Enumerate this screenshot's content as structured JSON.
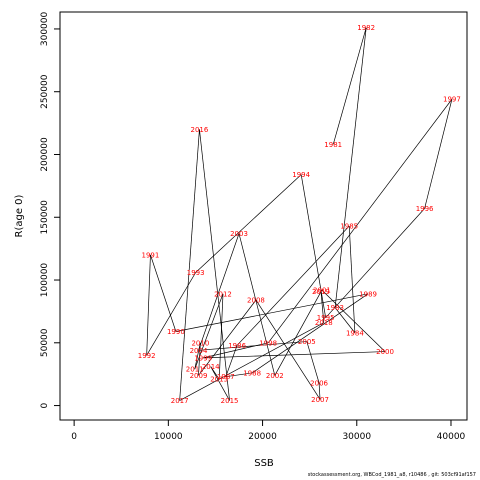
{
  "chart_data": {
    "type": "line",
    "xlabel": "SSB",
    "ylabel": "R(age 0)",
    "xlim": [
      -1500,
      41700
    ],
    "ylim": [
      -11500,
      313500
    ],
    "xticks": [
      0,
      10000,
      20000,
      30000,
      40000
    ],
    "yticks": [
      0,
      50000,
      100000,
      150000,
      200000,
      250000,
      300000
    ],
    "line_color": "#000000",
    "label_color": "#ff0000",
    "points": [
      {
        "year": "1981",
        "x": 27500,
        "y": 208000
      },
      {
        "year": "1982",
        "x": 31000,
        "y": 301000
      },
      {
        "year": "1983",
        "x": 27700,
        "y": 78000
      },
      {
        "year": "1984",
        "x": 29800,
        "y": 58000
      },
      {
        "year": "1985",
        "x": 29200,
        "y": 143000
      },
      {
        "year": "1986",
        "x": 17300,
        "y": 48000
      },
      {
        "year": "1987",
        "x": 16100,
        "y": 23000
      },
      {
        "year": "1988",
        "x": 18900,
        "y": 26000
      },
      {
        "year": "1989",
        "x": 31200,
        "y": 89000
      },
      {
        "year": "1990",
        "x": 10800,
        "y": 59000
      },
      {
        "year": "1991",
        "x": 8100,
        "y": 120000
      },
      {
        "year": "1992",
        "x": 7700,
        "y": 40000
      },
      {
        "year": "1993",
        "x": 12900,
        "y": 106000
      },
      {
        "year": "1994",
        "x": 24100,
        "y": 184000
      },
      {
        "year": "1995",
        "x": 26700,
        "y": 70000
      },
      {
        "year": "1996",
        "x": 37200,
        "y": 157000
      },
      {
        "year": "1997",
        "x": 40100,
        "y": 244000
      },
      {
        "year": "1998",
        "x": 20600,
        "y": 50000
      },
      {
        "year": "1999",
        "x": 13700,
        "y": 38000
      },
      {
        "year": "2000",
        "x": 33000,
        "y": 43000
      },
      {
        "year": "2001",
        "x": 26300,
        "y": 92000
      },
      {
        "year": "2002",
        "x": 21300,
        "y": 24000
      },
      {
        "year": "2003",
        "x": 17500,
        "y": 137000
      },
      {
        "year": "2004",
        "x": 13200,
        "y": 44000
      },
      {
        "year": "2005",
        "x": 24700,
        "y": 51000
      },
      {
        "year": "2006",
        "x": 26000,
        "y": 18000
      },
      {
        "year": "2007",
        "x": 26100,
        "y": 5000
      },
      {
        "year": "2008",
        "x": 19300,
        "y": 84000
      },
      {
        "year": "2009",
        "x": 13200,
        "y": 24000
      },
      {
        "year": "2010",
        "x": 13400,
        "y": 50000
      },
      {
        "year": "2011",
        "x": 12800,
        "y": 29000
      },
      {
        "year": "2012",
        "x": 15800,
        "y": 89000
      },
      {
        "year": "2013",
        "x": 15400,
        "y": 21000
      },
      {
        "year": "2014",
        "x": 14500,
        "y": 31000
      },
      {
        "year": "2015",
        "x": 16500,
        "y": 4000
      },
      {
        "year": "2016",
        "x": 13300,
        "y": 220000
      },
      {
        "year": "2017",
        "x": 11200,
        "y": 4000
      },
      {
        "year": "2018",
        "x": 26500,
        "y": 66000
      },
      {
        "year": "2019",
        "x": 26200,
        "y": 91000
      }
    ]
  },
  "footer": "stockassessment.org, WBCod_1981_a8, r10486 , git: 503cf91af157"
}
